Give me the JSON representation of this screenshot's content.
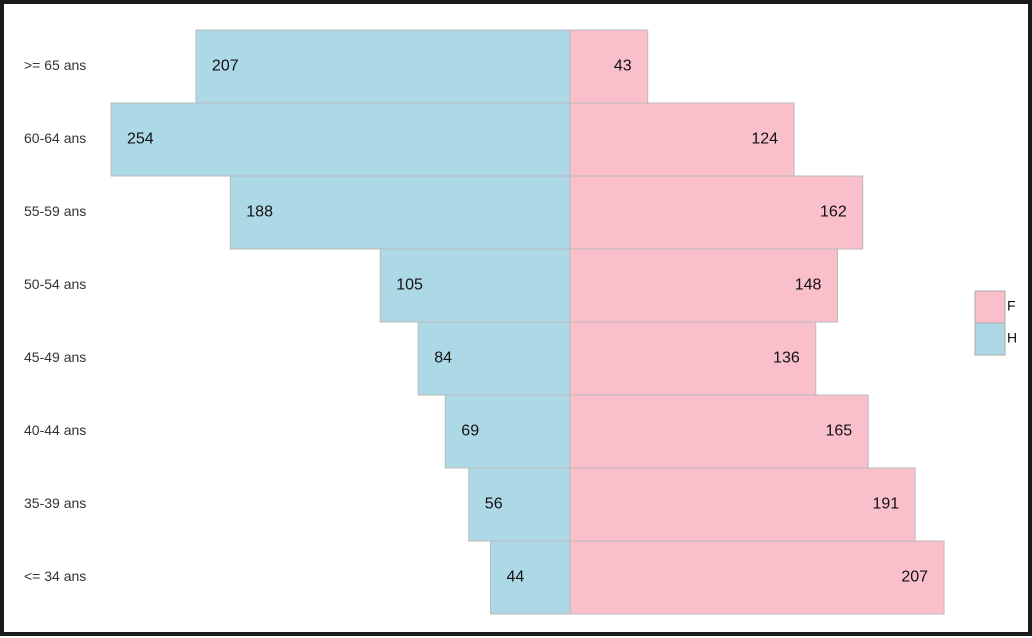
{
  "chart_data": {
    "type": "pyramid",
    "categories": [
      ">= 65 ans",
      "60-64 ans",
      "55-59 ans",
      "50-54 ans",
      "45-49 ans",
      "40-44 ans",
      "35-39 ans",
      "<= 34 ans"
    ],
    "series": [
      {
        "name": "H",
        "color": "#add8e6",
        "values": [
          207,
          254,
          188,
          105,
          84,
          69,
          56,
          44
        ]
      },
      {
        "name": "F",
        "color": "#f9bfcb",
        "values": [
          43,
          124,
          162,
          148,
          136,
          165,
          191,
          207
        ]
      }
    ],
    "legend": "right"
  }
}
